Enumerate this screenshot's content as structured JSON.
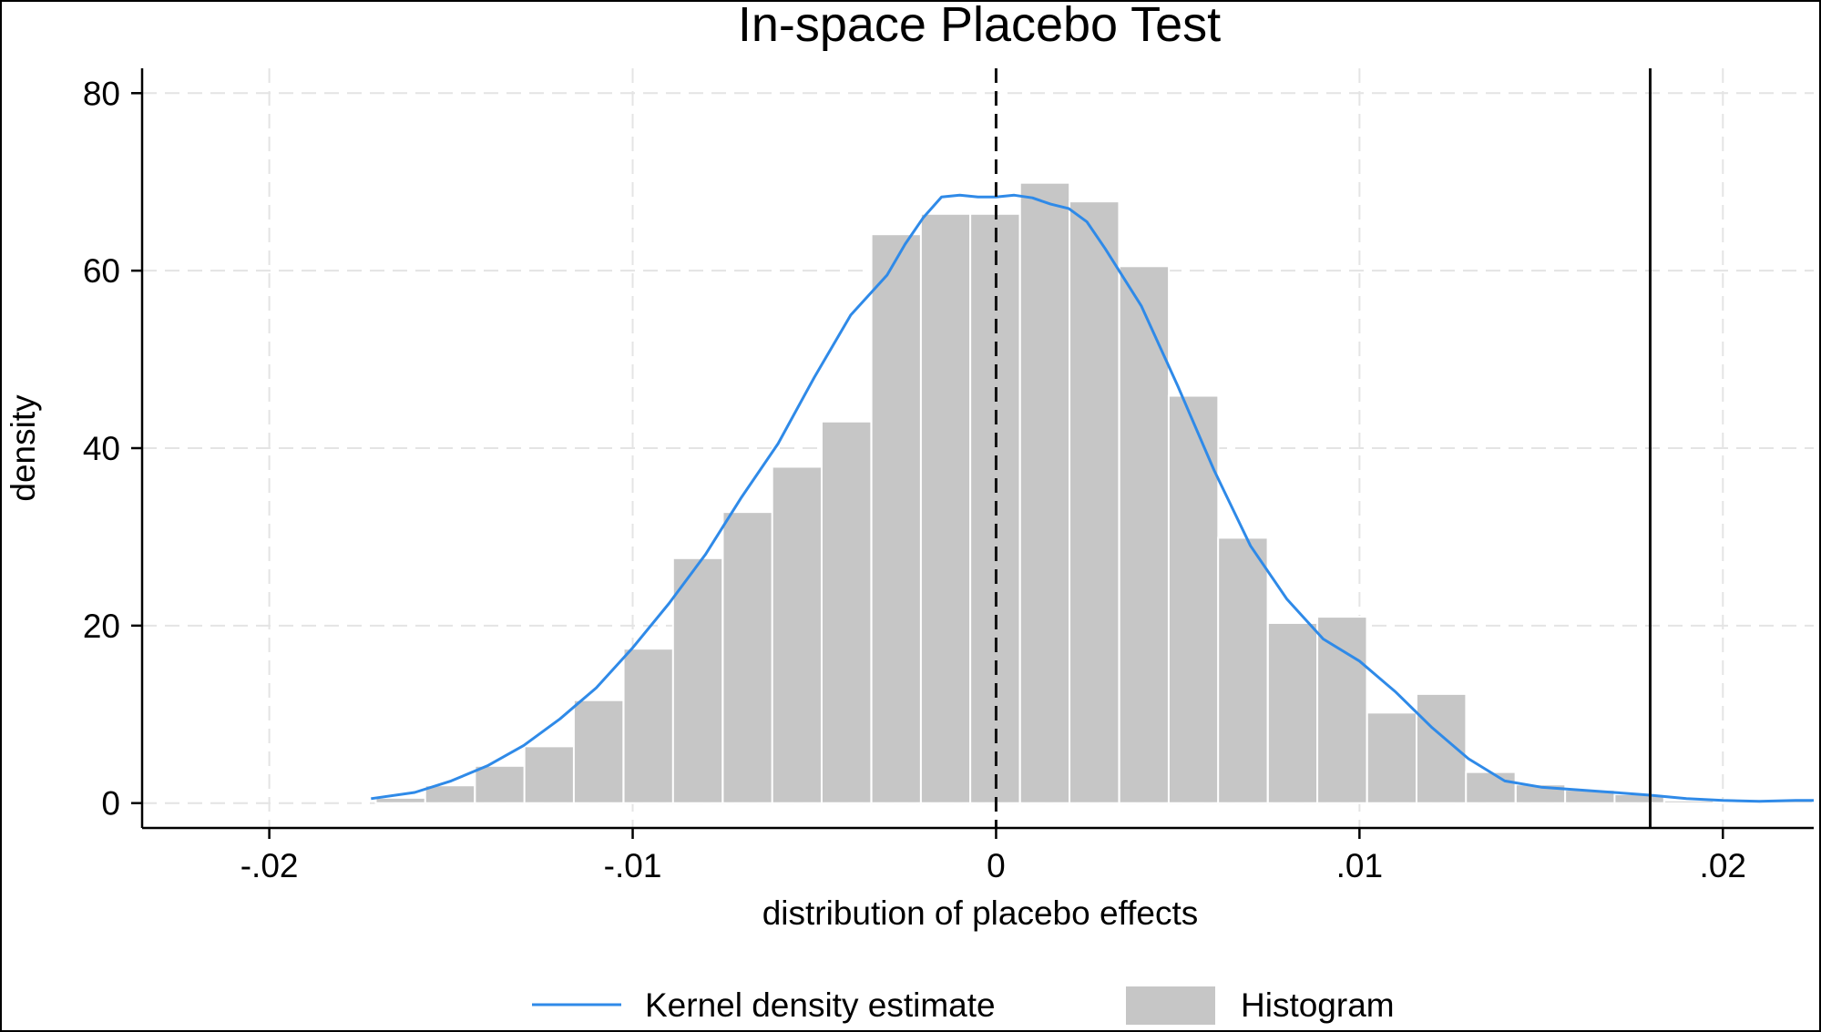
{
  "chart_data": {
    "type": "histogram",
    "title": "In-space Placebo Test",
    "xlabel": "distribution of placebo effects",
    "ylabel": "density",
    "xlim": [
      -0.0235,
      0.0225
    ],
    "ylim": [
      -2.8,
      82.8
    ],
    "xticks": [
      {
        "value": -0.02,
        "label": "-.02"
      },
      {
        "value": -0.01,
        "label": "-.01"
      },
      {
        "value": 0,
        "label": "0"
      },
      {
        "value": 0.01,
        "label": ".01"
      },
      {
        "value": 0.02,
        "label": ".02"
      }
    ],
    "yticks": [
      {
        "value": 0,
        "label": "0"
      },
      {
        "value": 20,
        "label": "20"
      },
      {
        "value": 40,
        "label": "40"
      },
      {
        "value": 60,
        "label": "60"
      },
      {
        "value": 80,
        "label": "80"
      }
    ],
    "grid": true,
    "bin_width": 0.001364,
    "bins": [
      {
        "start": -0.01707,
        "density": 0.6
      },
      {
        "start": -0.01571,
        "density": 2.0
      },
      {
        "start": -0.01434,
        "density": 4.2
      },
      {
        "start": -0.01298,
        "density": 6.4
      },
      {
        "start": -0.01162,
        "density": 11.6
      },
      {
        "start": -0.01025,
        "density": 17.4
      },
      {
        "start": -0.00889,
        "density": 27.6
      },
      {
        "start": -0.00752,
        "density": 32.8
      },
      {
        "start": -0.00616,
        "density": 37.9
      },
      {
        "start": -0.0048,
        "density": 43.0
      },
      {
        "start": -0.00343,
        "density": 64.1
      },
      {
        "start": -0.00207,
        "density": 66.4
      },
      {
        "start": -0.00071,
        "density": 66.4
      },
      {
        "start": 0.00066,
        "density": 69.9
      },
      {
        "start": 0.00202,
        "density": 67.8
      },
      {
        "start": 0.00339,
        "density": 60.5
      },
      {
        "start": 0.00475,
        "density": 45.9
      },
      {
        "start": 0.00611,
        "density": 29.9
      },
      {
        "start": 0.00748,
        "density": 20.3
      },
      {
        "start": 0.00884,
        "density": 21.0
      },
      {
        "start": 0.01021,
        "density": 10.2
      },
      {
        "start": 0.01157,
        "density": 12.3
      },
      {
        "start": 0.01293,
        "density": 3.5
      },
      {
        "start": 0.0143,
        "density": 2.1
      },
      {
        "start": 0.01566,
        "density": 1.5
      },
      {
        "start": 0.01702,
        "density": 1.0
      },
      {
        "start": 0.01839,
        "density": 0.3
      },
      {
        "start": 0.01975,
        "density": 0.2
      },
      {
        "start": 0.02111,
        "density": 0.3
      }
    ],
    "kde": {
      "x": [
        -0.0172,
        -0.016,
        -0.015,
        -0.014,
        -0.013,
        -0.012,
        -0.011,
        -0.01,
        -0.009,
        -0.008,
        -0.007,
        -0.006,
        -0.005,
        -0.004,
        -0.003,
        -0.0025,
        -0.002,
        -0.0015,
        -0.001,
        -0.0005,
        0.0,
        0.0005,
        0.001,
        0.0015,
        0.002,
        0.0025,
        0.003,
        0.004,
        0.005,
        0.006,
        0.007,
        0.008,
        0.009,
        0.01,
        0.011,
        0.012,
        0.013,
        0.014,
        0.015,
        0.016,
        0.017,
        0.018,
        0.019,
        0.02,
        0.021,
        0.022,
        0.0225
      ],
      "y": [
        0.5,
        1.2,
        2.5,
        4.2,
        6.5,
        9.5,
        13.0,
        17.5,
        22.5,
        28.0,
        34.5,
        40.5,
        48.0,
        55.0,
        59.5,
        63.0,
        66.0,
        68.3,
        68.5,
        68.3,
        68.3,
        68.5,
        68.2,
        67.5,
        67.0,
        65.5,
        62.5,
        56.0,
        47.0,
        37.5,
        29.0,
        23.0,
        18.5,
        16.0,
        12.5,
        8.5,
        5.0,
        2.5,
        1.8,
        1.5,
        1.2,
        0.9,
        0.5,
        0.3,
        0.2,
        0.3,
        0.3
      ]
    },
    "reference_lines": [
      {
        "x": 0,
        "style": "dashed"
      },
      {
        "x": 0.018,
        "style": "solid"
      }
    ],
    "legend": {
      "position": "bottom",
      "items": [
        {
          "label": "Kernel density estimate",
          "type": "line"
        },
        {
          "label": "Histogram",
          "type": "bar"
        }
      ]
    },
    "colors": {
      "bar_fill": "#c6c6c6",
      "bar_edge": "#ffffff",
      "kde_line": "#2f8ae8",
      "grid": "#e4e4e4",
      "axis": "#000000"
    }
  }
}
